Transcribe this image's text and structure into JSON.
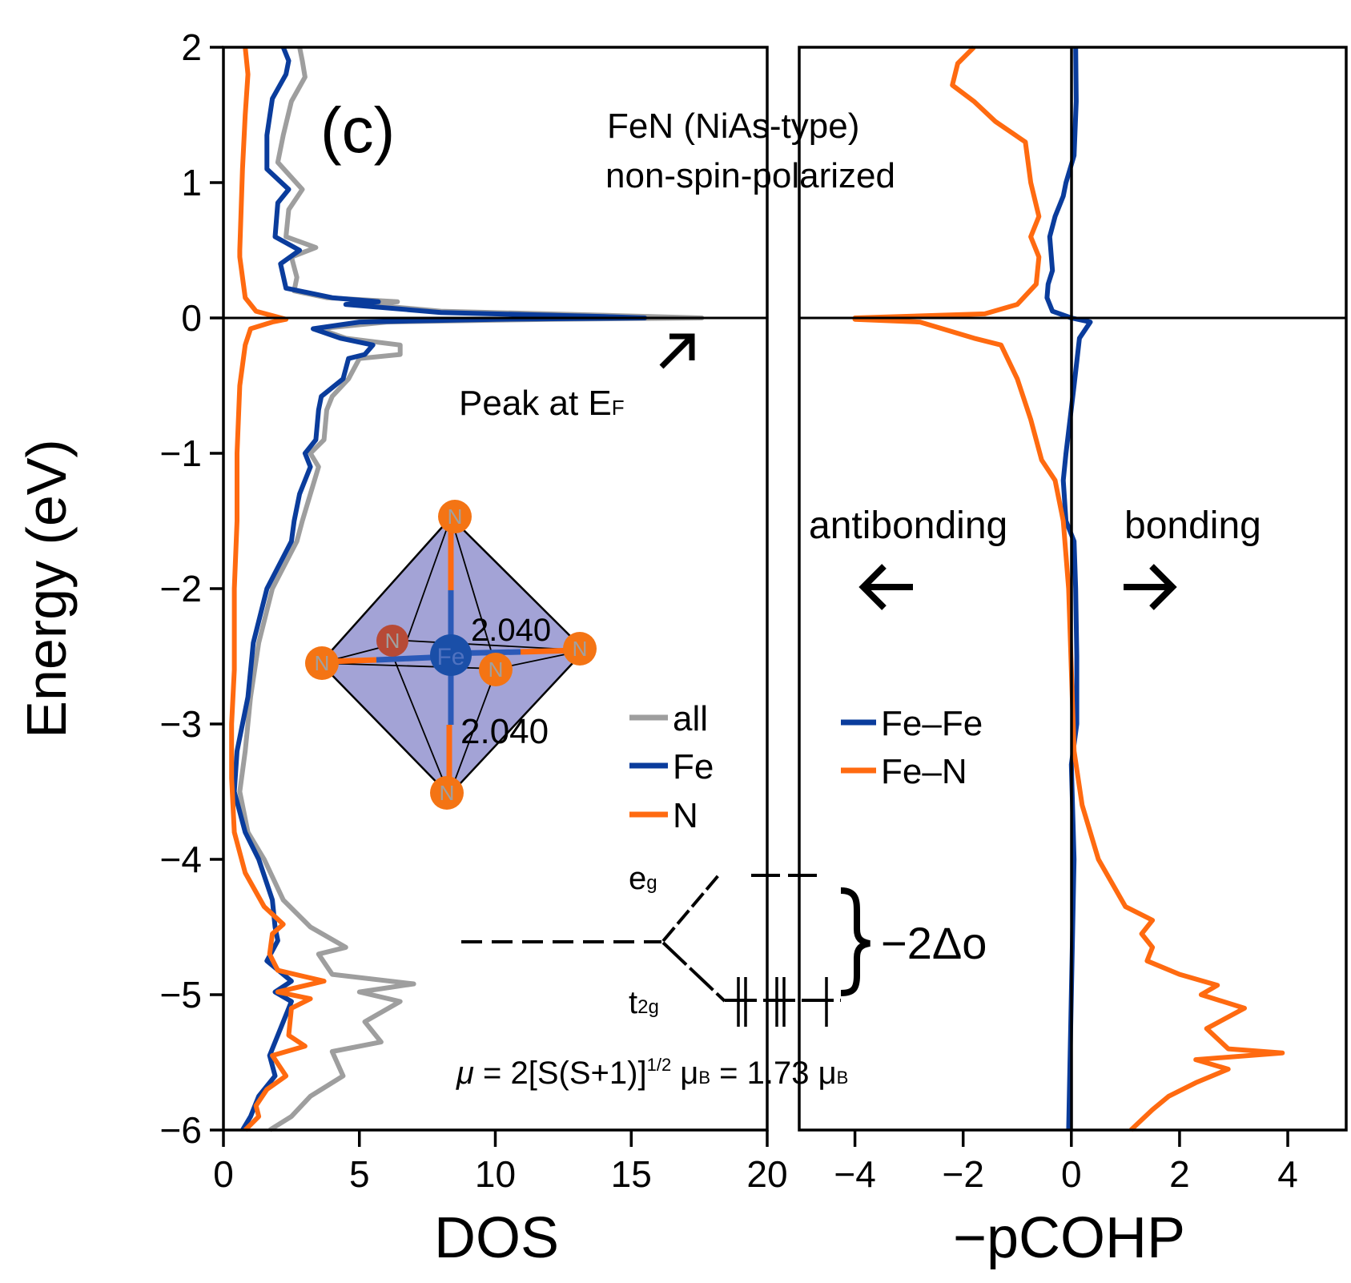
{
  "chart_data": [
    {
      "type": "line",
      "panel": "DOS",
      "title": "FeN (NiAs-type) non-spin-polarized",
      "panel_label": "(c)",
      "xlabel": "DOS",
      "ylabel": "Energy (eV)",
      "xlim": [
        0,
        20
      ],
      "ylim": [
        -6,
        2
      ],
      "xticks": [
        "0",
        "5",
        "10",
        "15",
        "20"
      ],
      "yticks": [
        "2",
        "1",
        "0",
        "−1",
        "−2",
        "−3",
        "−4",
        "−5",
        "−6"
      ],
      "xtick_values": [
        0,
        5,
        10,
        15,
        20
      ],
      "ytick_values": [
        2,
        1,
        0,
        -1,
        -2,
        -3,
        -4,
        -5,
        -6
      ],
      "fermi_level": 0,
      "legend": [
        "all",
        "Fe",
        "N"
      ],
      "legend_placement": "lower-right",
      "series": [
        {
          "name": "all",
          "color": "#9e9e9e",
          "points": [
            [
              2.8,
              2
            ],
            [
              2.9,
              1.9
            ],
            [
              3.0,
              1.78
            ],
            [
              2.5,
              1.6
            ],
            [
              2.2,
              1.35
            ],
            [
              2.0,
              1.15
            ],
            [
              2.9,
              0.95
            ],
            [
              2.4,
              0.8
            ],
            [
              2.3,
              0.6
            ],
            [
              3.4,
              0.52
            ],
            [
              2.5,
              0.45
            ],
            [
              2.7,
              0.3
            ],
            [
              2.6,
              0.2
            ],
            [
              3.8,
              0.15
            ],
            [
              6.4,
              0.12
            ],
            [
              5.2,
              0.1
            ],
            [
              8,
              0.05
            ],
            [
              14,
              0.02
            ],
            [
              17.6,
              0.0
            ],
            [
              12,
              -0.01
            ],
            [
              6,
              -0.03
            ],
            [
              3.5,
              -0.08
            ],
            [
              4.5,
              -0.15
            ],
            [
              6.5,
              -0.2
            ],
            [
              6.5,
              -0.27
            ],
            [
              5,
              -0.3
            ],
            [
              4.6,
              -0.45
            ],
            [
              4.0,
              -0.58
            ],
            [
              3.8,
              -0.68
            ],
            [
              3.7,
              -0.9
            ],
            [
              3.2,
              -1.0
            ],
            [
              3.5,
              -1.1
            ],
            [
              3.2,
              -1.3
            ],
            [
              2.9,
              -1.5
            ],
            [
              2.7,
              -1.65
            ],
            [
              1.8,
              -2.0
            ],
            [
              1.3,
              -2.4
            ],
            [
              1.0,
              -2.8
            ],
            [
              0.8,
              -3.2
            ],
            [
              0.6,
              -3.5
            ],
            [
              0.9,
              -3.8
            ],
            [
              1.5,
              -4.0
            ],
            [
              2.2,
              -4.3
            ],
            [
              3.2,
              -4.5
            ],
            [
              4.5,
              -4.65
            ],
            [
              3.5,
              -4.7
            ],
            [
              4.0,
              -4.85
            ],
            [
              7.0,
              -4.92
            ],
            [
              5.0,
              -4.98
            ],
            [
              6.5,
              -5.05
            ],
            [
              5.2,
              -5.2
            ],
            [
              5.8,
              -5.35
            ],
            [
              4.0,
              -5.42
            ],
            [
              4.4,
              -5.6
            ],
            [
              3.2,
              -5.75
            ],
            [
              2.5,
              -5.9
            ],
            [
              1.7,
              -6.0
            ]
          ]
        },
        {
          "name": "Fe",
          "color": "#0a3c9c",
          "points": [
            [
              2.2,
              2
            ],
            [
              2.4,
              1.9
            ],
            [
              2.3,
              1.8
            ],
            [
              1.8,
              1.62
            ],
            [
              1.6,
              1.35
            ],
            [
              1.6,
              1.1
            ],
            [
              2.4,
              0.95
            ],
            [
              2.0,
              0.85
            ],
            [
              1.9,
              0.6
            ],
            [
              2.8,
              0.5
            ],
            [
              2.1,
              0.4
            ],
            [
              2.3,
              0.22
            ],
            [
              4.0,
              0.15
            ],
            [
              5.7,
              0.12
            ],
            [
              4.5,
              0.1
            ],
            [
              8,
              0.04
            ],
            [
              14,
              0.01
            ],
            [
              15.5,
              0.0
            ],
            [
              10,
              -0.01
            ],
            [
              5,
              -0.03
            ],
            [
              3.3,
              -0.08
            ],
            [
              4.3,
              -0.15
            ],
            [
              5.5,
              -0.2
            ],
            [
              5.2,
              -0.27
            ],
            [
              4.6,
              -0.3
            ],
            [
              4.4,
              -0.45
            ],
            [
              3.6,
              -0.58
            ],
            [
              3.5,
              -0.68
            ],
            [
              3.4,
              -0.9
            ],
            [
              3.0,
              -1.0
            ],
            [
              3.2,
              -1.1
            ],
            [
              2.8,
              -1.3
            ],
            [
              2.6,
              -1.5
            ],
            [
              2.5,
              -1.65
            ],
            [
              1.6,
              -2.0
            ],
            [
              1.1,
              -2.4
            ],
            [
              0.9,
              -2.8
            ],
            [
              0.5,
              -3.2
            ],
            [
              0.4,
              -3.5
            ],
            [
              0.8,
              -3.8
            ],
            [
              1.3,
              -4.0
            ],
            [
              1.8,
              -4.3
            ],
            [
              1.9,
              -4.5
            ],
            [
              2.0,
              -4.6
            ],
            [
              1.6,
              -4.75
            ],
            [
              2.5,
              -4.9
            ],
            [
              1.9,
              -4.98
            ],
            [
              2.5,
              -5.05
            ],
            [
              2.1,
              -5.25
            ],
            [
              1.9,
              -5.35
            ],
            [
              1.7,
              -5.45
            ],
            [
              1.9,
              -5.6
            ],
            [
              1.3,
              -5.75
            ],
            [
              1.0,
              -5.9
            ],
            [
              0.7,
              -6.0
            ]
          ]
        },
        {
          "name": "N",
          "color": "#ff6a10",
          "points": [
            [
              0.8,
              2
            ],
            [
              0.9,
              1.8
            ],
            [
              0.8,
              1.5
            ],
            [
              0.7,
              1.1
            ],
            [
              0.6,
              0.5
            ],
            [
              0.6,
              0.45
            ],
            [
              0.7,
              0.3
            ],
            [
              0.8,
              0.15
            ],
            [
              1.2,
              0.05
            ],
            [
              2.3,
              -0.01
            ],
            [
              1.8,
              -0.03
            ],
            [
              1.0,
              -0.08
            ],
            [
              0.8,
              -0.2
            ],
            [
              0.6,
              -0.5
            ],
            [
              0.5,
              -1.0
            ],
            [
              0.5,
              -1.5
            ],
            [
              0.4,
              -2.0
            ],
            [
              0.4,
              -2.6
            ],
            [
              0.3,
              -3.0
            ],
            [
              0.3,
              -3.4
            ],
            [
              0.4,
              -3.8
            ],
            [
              0.8,
              -4.1
            ],
            [
              1.5,
              -4.35
            ],
            [
              2.2,
              -4.48
            ],
            [
              1.8,
              -4.55
            ],
            [
              1.7,
              -4.7
            ],
            [
              2.0,
              -4.82
            ],
            [
              3.7,
              -4.9
            ],
            [
              2.0,
              -4.98
            ],
            [
              3.2,
              -5.03
            ],
            [
              2.5,
              -5.1
            ],
            [
              2.4,
              -5.3
            ],
            [
              3.0,
              -5.38
            ],
            [
              1.8,
              -5.45
            ],
            [
              2.3,
              -5.6
            ],
            [
              1.6,
              -5.7
            ],
            [
              1.2,
              -5.82
            ],
            [
              1.3,
              -5.9
            ],
            [
              0.8,
              -6.0
            ]
          ]
        }
      ],
      "annotations": [
        "Peak at E",
        "F"
      ]
    },
    {
      "type": "line",
      "panel": "-pCOHP",
      "xlabel": "−pCOHP",
      "xlim": [
        -5.03,
        5.08
      ],
      "ylim": [
        -6,
        2
      ],
      "xticks": [
        "−4",
        "−2",
        "0",
        "2",
        "4"
      ],
      "xtick_values": [
        -4,
        -2,
        0,
        2,
        4
      ],
      "legend": [
        "Fe–Fe",
        "Fe–N"
      ],
      "legend_placement": "lower-left",
      "series": [
        {
          "name": "Fe–Fe",
          "color": "#0a3c9c",
          "points": [
            [
              0.08,
              2
            ],
            [
              0.09,
              1.6
            ],
            [
              0.05,
              1.2
            ],
            [
              -0.1,
              1.0
            ],
            [
              -0.15,
              0.9
            ],
            [
              -0.3,
              0.75
            ],
            [
              -0.4,
              0.6
            ],
            [
              -0.35,
              0.35
            ],
            [
              -0.43,
              0.25
            ],
            [
              -0.45,
              0.15
            ],
            [
              -0.35,
              0.05
            ],
            [
              0.0,
              0.0
            ],
            [
              0.35,
              -0.03
            ],
            [
              0.15,
              -0.15
            ],
            [
              0.05,
              -0.5
            ],
            [
              -0.1,
              -1.0
            ],
            [
              -0.15,
              -1.2
            ],
            [
              -0.1,
              -1.5
            ],
            [
              0.05,
              -1.65
            ],
            [
              0.08,
              -2.0
            ],
            [
              0.1,
              -2.5
            ],
            [
              0.1,
              -3.0
            ],
            [
              0.0,
              -3.3
            ],
            [
              0.05,
              -4.0
            ],
            [
              0.0,
              -5.0
            ],
            [
              -0.05,
              -6.0
            ]
          ]
        },
        {
          "name": "Fe–N",
          "color": "#ff6a10",
          "points": [
            [
              -1.8,
              2
            ],
            [
              -2.1,
              1.88
            ],
            [
              -2.2,
              1.72
            ],
            [
              -1.8,
              1.6
            ],
            [
              -1.4,
              1.45
            ],
            [
              -0.85,
              1.3
            ],
            [
              -0.75,
              1.0
            ],
            [
              -0.6,
              0.75
            ],
            [
              -0.75,
              0.6
            ],
            [
              -0.6,
              0.45
            ],
            [
              -0.65,
              0.25
            ],
            [
              -1.0,
              0.1
            ],
            [
              -1.6,
              0.03
            ],
            [
              -4.0,
              0.0
            ],
            [
              -4.0,
              -0.01
            ],
            [
              -2.8,
              -0.03
            ],
            [
              -1.8,
              -0.15
            ],
            [
              -1.3,
              -0.2
            ],
            [
              -1.0,
              -0.45
            ],
            [
              -0.75,
              -0.75
            ],
            [
              -0.55,
              -1.05
            ],
            [
              -0.3,
              -1.2
            ],
            [
              -0.15,
              -1.5
            ],
            [
              -0.05,
              -2.0
            ],
            [
              0.0,
              -2.6
            ],
            [
              0.05,
              -3.2
            ],
            [
              0.2,
              -3.6
            ],
            [
              0.5,
              -4.0
            ],
            [
              1.0,
              -4.35
            ],
            [
              1.5,
              -4.45
            ],
            [
              1.3,
              -4.55
            ],
            [
              1.5,
              -4.65
            ],
            [
              1.4,
              -4.75
            ],
            [
              2.0,
              -4.85
            ],
            [
              2.7,
              -4.93
            ],
            [
              2.4,
              -5.0
            ],
            [
              3.2,
              -5.1
            ],
            [
              2.5,
              -5.25
            ],
            [
              2.9,
              -5.4
            ],
            [
              3.9,
              -5.43
            ],
            [
              2.3,
              -5.48
            ],
            [
              2.9,
              -5.55
            ],
            [
              2.3,
              -5.65
            ],
            [
              1.8,
              -5.75
            ],
            [
              1.5,
              -5.85
            ],
            [
              1.1,
              -6.0
            ]
          ]
        }
      ],
      "annotations": [
        "antibonding",
        "bonding"
      ]
    }
  ],
  "labels": {
    "panel_label": "(c)",
    "title_line1": "FeN (NiAs-type)",
    "title_line2": "non-spin-polarized",
    "peak_text": "Peak at E",
    "peak_sub": "F",
    "antibonding": "antibonding",
    "bonding": "bonding",
    "ylabel": "Energy (eV)",
    "xlabel_left": "DOS",
    "xlabel_right": "−pCOHP",
    "bond_length_1": "2.040",
    "bond_length_2": "2.040",
    "atom_n": "N",
    "atom_fe": "Fe",
    "eg": "e",
    "eg_sub": "g",
    "t2g": "t",
    "t2g_sub": "2g",
    "splitting": "−2Δo",
    "moment_mu": "μ",
    "moment_eq1": " = 2[S(S+1)]",
    "moment_exp": "1/2",
    "moment_muB1": " μ",
    "moment_B1": "B",
    "moment_eq2": " = 1.73 μ",
    "moment_B2": "B"
  },
  "colors": {
    "all": "#9e9e9e",
    "fe": "#0a3c9c",
    "n": "#ff6a10",
    "octahedron": "#a3a3d6"
  }
}
